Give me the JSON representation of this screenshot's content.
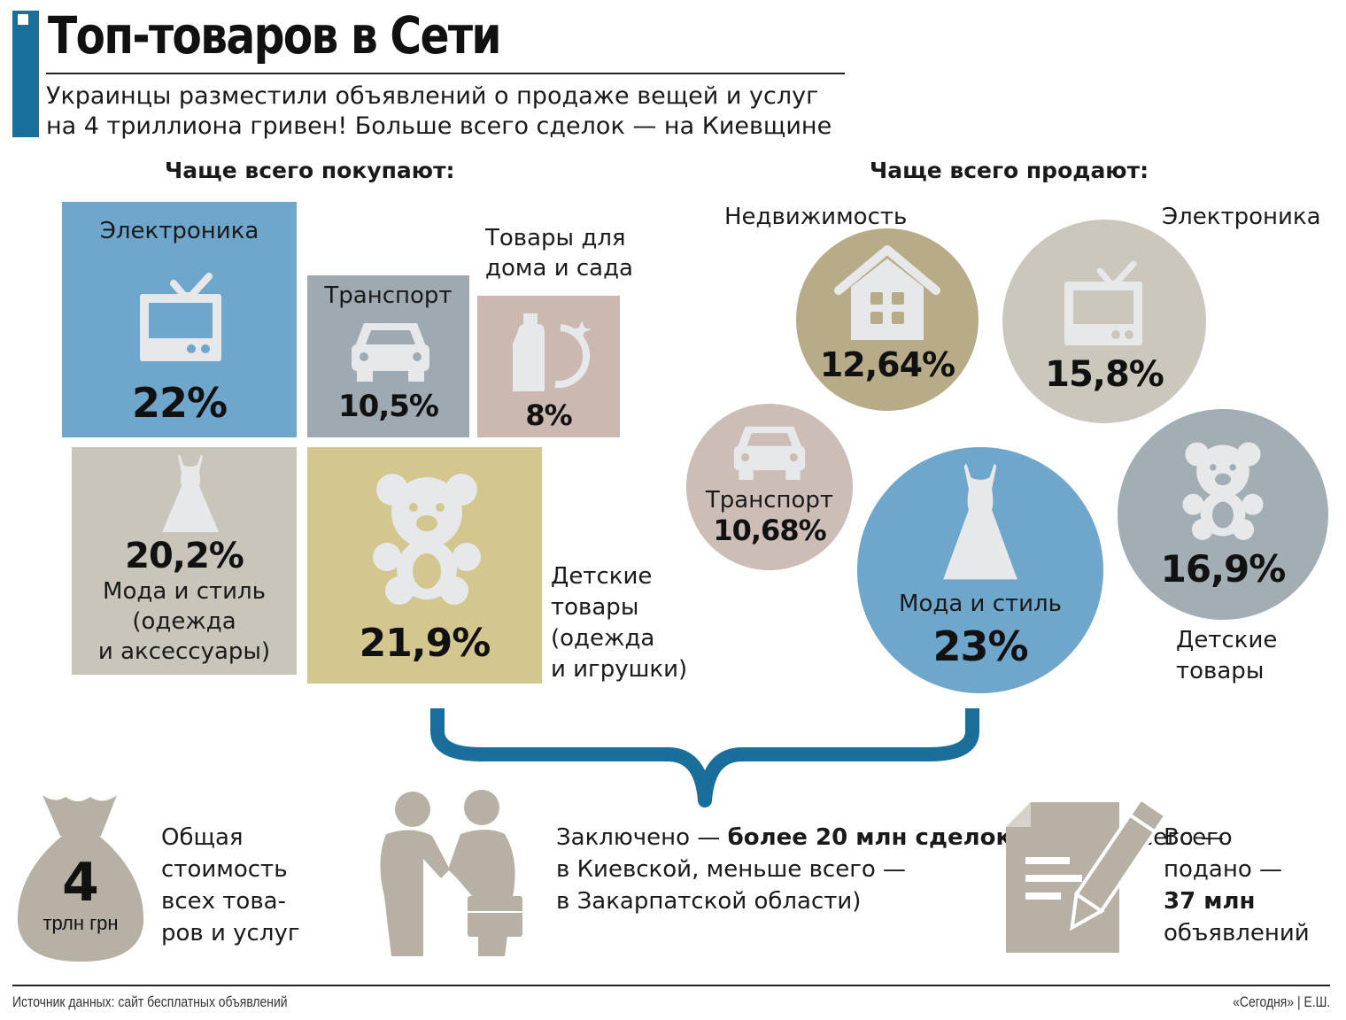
{
  "header": {
    "title": "Топ-товаров в Сети",
    "subtitle_line1": "Украинцы разместили объявлений о продаже вещей и услуг",
    "subtitle_line2": "на 4 триллиона гривен! Больше всего сделок — на Киевщине"
  },
  "buy": {
    "heading": "Чаще всего покупают:",
    "tiles": [
      {
        "label": "Электроника",
        "value": "22%",
        "icon": "tv-icon",
        "color": "#6fa7cc"
      },
      {
        "label": "Транспорт",
        "value": "10,5%",
        "icon": "car-icon",
        "color": "#9ea9b1"
      },
      {
        "label_line1": "Товары для",
        "label_line2": "дома и сада",
        "value": "8%",
        "icon": "detergent-icon",
        "color": "#cbb8b1"
      },
      {
        "label_line1": "Мода и стиль",
        "label_line2": "(одежда",
        "label_line3": "и аксессуары)",
        "value": "20,2%",
        "icon": "dress-icon",
        "color": "#c9c5ba"
      },
      {
        "label_line1": "Детские",
        "label_line2": "товары",
        "label_line3": "(одежда",
        "label_line4": "и игрушки)",
        "value": "21,9%",
        "icon": "teddy-bear-icon",
        "color": "#d3c78f"
      }
    ]
  },
  "sell": {
    "heading": "Чаще всего продают:",
    "circles": [
      {
        "label": "Недвижимость",
        "value": "12,64%",
        "icon": "house-icon",
        "color": "#b8ab88"
      },
      {
        "label": "Электроника",
        "value": "15,8%",
        "icon": "tv-icon",
        "color": "#cbc7bc"
      },
      {
        "label": "Транспорт",
        "value": "10,68%",
        "icon": "car-icon",
        "color": "#cdbdb7"
      },
      {
        "label": "Мода и стиль",
        "value": "23%",
        "icon": "dress-icon",
        "color": "#6fa7cc"
      },
      {
        "label_line1": "Детские",
        "label_line2": "товары",
        "value": "16,9%",
        "icon": "teddy-bear-icon",
        "color": "#a2adb4"
      }
    ]
  },
  "chart_data": [
    {
      "type": "bar",
      "title": "Чаще всего покупают:",
      "categories": [
        "Электроника",
        "Транспорт",
        "Товары для дома и сада",
        "Мода и стиль (одежда и аксессуары)",
        "Детские товары (одежда и игрушки)"
      ],
      "values": [
        22,
        10.5,
        8,
        20.2,
        21.9
      ],
      "unit": "%"
    },
    {
      "type": "bar",
      "title": "Чаще всего продают:",
      "categories": [
        "Недвижимость",
        "Электроника",
        "Транспорт",
        "Мода и стиль",
        "Детские товары"
      ],
      "values": [
        12.64,
        15.8,
        10.68,
        23,
        16.9
      ],
      "unit": "%"
    }
  ],
  "bottom": {
    "money_value": "4",
    "money_unit": "трлн грн",
    "money_text_1": "Общая",
    "money_text_2": "стоимость",
    "money_text_3": "всех това-",
    "money_text_4": "ров и услуг",
    "deals_prefix": "Заключено — ",
    "deals_bold": "более 20 млн сделок",
    "deals_rest_1": " (больше всего —",
    "deals_line3": "в Киевской, меньше всего —",
    "deals_line4": "в Закарпатской области)",
    "ads_text_1": "Всего",
    "ads_text_2": "подано —",
    "ads_bold": "37 млн",
    "ads_text_4": "объявлений"
  },
  "footer": {
    "source": "Источник данных: сайт бесплатных объявлений",
    "credit": "«Сегодня» | Е.Ш."
  },
  "colors": {
    "accent": "#1a6e9c",
    "brace": "#1a6e9c",
    "icon_fill": "#e6e8ea",
    "bottom_icon": "#b7b0a4"
  }
}
